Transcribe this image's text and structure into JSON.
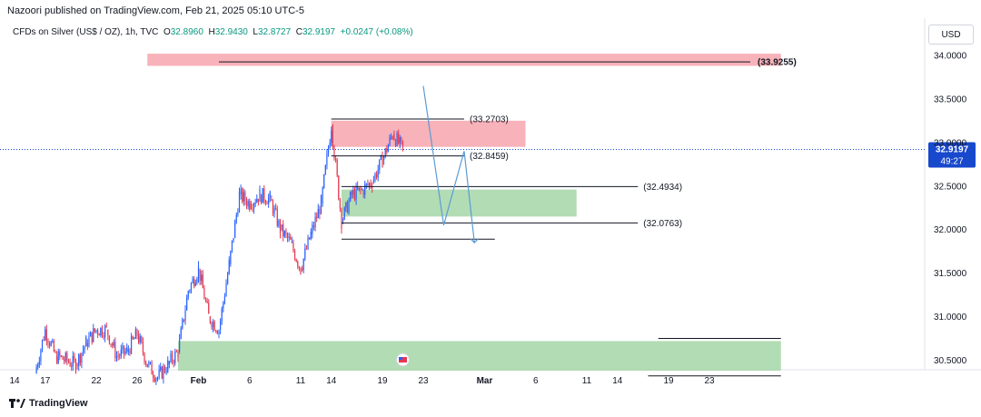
{
  "header": {
    "publisher": "Nazoori published on TradingView.com, Feb 21, 2025 05:10 UTC-5"
  },
  "symbol": {
    "name": "CFDs on Silver (US$ / OZ), 1h, TVC",
    "o_label": "O",
    "o": "32.8960",
    "h_label": "H",
    "h": "32.9430",
    "l_label": "L",
    "l": "32.8727",
    "c_label": "C",
    "c": "32.9197",
    "change": "+0.0247 (+0.08%)"
  },
  "currency": "USD",
  "footer": {
    "brand": "TradingView"
  },
  "colors": {
    "up": "#2962ff",
    "down": "#e53950",
    "resistance": "#f7a5ad",
    "support": "#a5d6a7",
    "price_tag": "#1848cc"
  },
  "chart_data": {
    "type": "candlestick",
    "y_range": [
      30.25,
      34.15
    ],
    "y_ticks": [
      "34.0000",
      "33.5000",
      "33.0000",
      "32.5000",
      "32.0000",
      "31.5000",
      "31.0000",
      "30.5000"
    ],
    "y_tick_values": [
      34.0,
      33.5,
      33.0,
      32.5,
      32.0,
      31.5,
      31.0,
      30.5
    ],
    "x_ticks": [
      "14",
      "17",
      "22",
      "26",
      "Feb",
      "6",
      "11",
      "14",
      "19",
      "23",
      "Mar",
      "6",
      "11",
      "14",
      "19",
      "23"
    ],
    "x_tick_dates": [
      "2025-01-14",
      "2025-01-17",
      "2025-01-22",
      "2025-01-26",
      "2025-02-01",
      "2025-02-06",
      "2025-02-11",
      "2025-02-14",
      "2025-02-19",
      "2025-02-23",
      "2025-03-01",
      "2025-03-06",
      "2025-03-11",
      "2025-03-14",
      "2025-03-19",
      "2025-03-23"
    ],
    "price_path": [
      [
        "2025-01-16",
        30.35
      ],
      [
        "2025-01-17",
        30.85
      ],
      [
        "2025-01-18",
        30.55
      ],
      [
        "2025-01-20",
        30.45
      ],
      [
        "2025-01-21",
        30.7
      ],
      [
        "2025-01-22",
        30.85
      ],
      [
        "2025-01-23",
        30.85
      ],
      [
        "2025-01-24",
        30.55
      ],
      [
        "2025-01-25",
        30.6
      ],
      [
        "2025-01-26",
        30.8
      ],
      [
        "2025-01-27",
        30.45
      ],
      [
        "2025-01-28",
        30.3
      ],
      [
        "2025-01-29",
        30.45
      ],
      [
        "2025-01-30",
        30.6
      ],
      [
        "2025-01-31",
        31.3
      ],
      [
        "2025-02-01",
        31.55
      ],
      [
        "2025-02-02",
        31.0
      ],
      [
        "2025-02-03",
        30.85
      ],
      [
        "2025-02-04",
        31.6
      ],
      [
        "2025-02-05",
        32.4
      ],
      [
        "2025-02-06",
        32.3
      ],
      [
        "2025-02-07",
        32.4
      ],
      [
        "2025-02-08",
        32.35
      ],
      [
        "2025-02-09",
        32.0
      ],
      [
        "2025-02-10",
        31.85
      ],
      [
        "2025-02-11",
        31.55
      ],
      [
        "2025-02-12",
        31.95
      ],
      [
        "2025-02-13",
        32.3
      ],
      [
        "2025-02-14",
        33.2
      ],
      [
        "2025-02-15",
        32.1
      ],
      [
        "2025-02-16",
        32.4
      ],
      [
        "2025-02-17",
        32.45
      ],
      [
        "2025-02-18",
        32.55
      ],
      [
        "2025-02-19",
        32.8
      ],
      [
        "2025-02-20",
        33.1
      ],
      [
        "2025-02-21",
        32.92
      ]
    ],
    "zones": [
      {
        "name": "resistance-zone-top",
        "from": "2025-01-27",
        "to": "2025-03-30",
        "low": 33.88,
        "high": 34.02,
        "kind": "resistance"
      },
      {
        "name": "resistance-zone-mid",
        "from": "2025-02-14",
        "to": "2025-03-05",
        "low": 32.95,
        "high": 33.25,
        "kind": "resistance"
      },
      {
        "name": "support-zone-mid",
        "from": "2025-02-15",
        "to": "2025-03-10",
        "low": 32.15,
        "high": 32.46,
        "kind": "support"
      },
      {
        "name": "support-zone-bottom",
        "from": "2025-01-30",
        "to": "2025-03-30",
        "low": 30.38,
        "high": 30.72,
        "kind": "support"
      }
    ],
    "levels": [
      {
        "value": 33.9255,
        "label": "(33.9255)",
        "from": "2025-02-03",
        "to": "2025-03-27"
      },
      {
        "value": 33.2703,
        "label": "(33.2703)",
        "from": "2025-02-14",
        "to": "2025-02-27"
      },
      {
        "value": 32.8459,
        "label": "(32.8459)",
        "from": "2025-02-14",
        "to": "2025-02-27"
      },
      {
        "value": 32.4934,
        "label": "(32.4934)",
        "from": "2025-02-15",
        "to": "2025-03-16"
      },
      {
        "value": 32.0763,
        "label": "(32.0763)",
        "from": "2025-02-15",
        "to": "2025-03-16"
      },
      {
        "value": 31.89,
        "label": "",
        "from": "2025-02-15",
        "to": "2025-03-02"
      },
      {
        "value": 30.75,
        "label": "",
        "from": "2025-03-18",
        "to": "2025-03-30"
      },
      {
        "value": 30.32,
        "label": "",
        "from": "2025-03-17",
        "to": "2025-03-30"
      }
    ],
    "projection": [
      [
        "2025-02-23",
        33.65
      ],
      [
        "2025-02-25",
        32.05
      ],
      [
        "2025-02-27",
        32.9
      ],
      [
        "2025-02-28",
        31.85
      ]
    ],
    "current_price": {
      "value": 32.9197,
      "label": "32.9197",
      "countdown": "49:27"
    }
  }
}
